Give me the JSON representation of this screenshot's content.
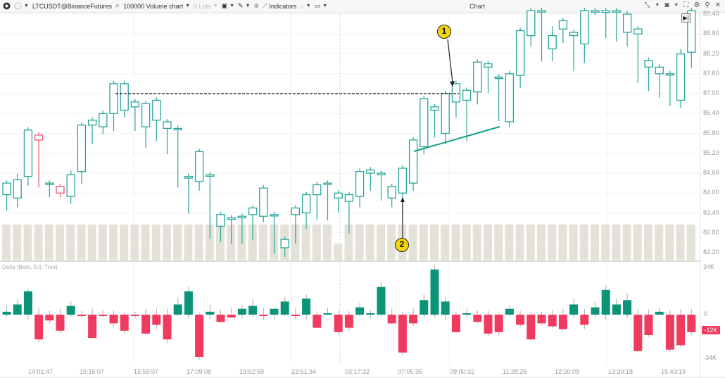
{
  "toolbar": {
    "symbol": "LTCUSDT@BinanceFutures",
    "chart_type": "100000 Volume chart",
    "lots": "0 Lots",
    "indicators": "Indicators",
    "title": "Chart"
  },
  "price_axis": {
    "labels": [
      "89.40",
      "88.80",
      "88.20",
      "87.60",
      "87.00",
      "86.40",
      "85.80",
      "85.20",
      "84.60",
      "84.00",
      "83.40",
      "82.80",
      "82.20"
    ]
  },
  "delta_pane": {
    "title": "Delta (Bars, 0.0, True)",
    "axis_labels": [
      "34K",
      "0",
      "-34K"
    ],
    "last_value": "-12K"
  },
  "time_axis": {
    "labels": [
      "14:01:47",
      "15:15:07",
      "15:59:07",
      "17:09:08",
      "19:52:59",
      "23:51:34",
      "03:17:32",
      "07:05:35",
      "09:00:32",
      "11:28:26",
      "12:20:09",
      "13:30:18",
      "15:43:19"
    ]
  },
  "annotations": {
    "marker_1": "1",
    "marker_2": "2"
  },
  "colors": {
    "up": "#26a69a",
    "down": "#ef5370",
    "delta_up": "#0b9478",
    "delta_down": "#f03a5f",
    "volume": "#e4e2d8",
    "marker": "#f5d60a"
  },
  "chart_data": {
    "type": "candlestick",
    "title": "LTCUSDT@BinanceFutures 100000 Volume chart",
    "ylim": [
      82.0,
      89.5
    ],
    "candles": [
      [
        83.95,
        84.3,
        83.6,
        83.85
      ],
      [
        83.85,
        84.4,
        83.7,
        84.5
      ],
      [
        84.5,
        85.9,
        84.35,
        85.8
      ],
      [
        85.75,
        85.6,
        84.3,
        84.3
      ],
      [
        84.3,
        84.3,
        84.0,
        84.2
      ],
      [
        84.2,
        84.0,
        84.0,
        84.0
      ],
      [
        83.9,
        84.55,
        83.8,
        84.6
      ],
      [
        84.65,
        86.05,
        84.4,
        86.0
      ],
      [
        86.05,
        86.2,
        85.6,
        86.0
      ],
      [
        86.0,
        86.4,
        85.9,
        86.4
      ],
      [
        86.4,
        87.3,
        86.0,
        86.45
      ],
      [
        86.5,
        87.3,
        86.4,
        86.6
      ],
      [
        86.6,
        86.75,
        86.0,
        86.0
      ],
      [
        86.0,
        86.7,
        85.5,
        86.25
      ],
      [
        86.2,
        86.8,
        85.7,
        86.0
      ],
      [
        85.95,
        86.15,
        85.3,
        85.95
      ],
      [
        85.95,
        85.95,
        84.3,
        84.5
      ],
      [
        84.45,
        84.5,
        83.5,
        84.3
      ],
      [
        84.35,
        85.25,
        84.2,
        84.55
      ],
      [
        84.55,
        84.55,
        82.75,
        82.75
      ],
      [
        83.0,
        83.35,
        82.65,
        82.9
      ],
      [
        83.25,
        83.25,
        82.6,
        82.6
      ],
      [
        83.25,
        83.3,
        82.6,
        82.6
      ],
      [
        83.35,
        83.55,
        82.7,
        83.35
      ],
      [
        83.3,
        84.15,
        83.25,
        83.45
      ],
      [
        83.35,
        83.35,
        82.3,
        82.3
      ],
      [
        82.35,
        82.6,
        82.2,
        82.5
      ],
      [
        83.35,
        83.55,
        82.6,
        82.6
      ],
      [
        83.4,
        83.95,
        83.05,
        83.5
      ],
      [
        83.95,
        84.25,
        83.3,
        84.2
      ],
      [
        84.3,
        84.3,
        83.3,
        83.45
      ],
      [
        83.85,
        84.0,
        83.55,
        83.7
      ],
      [
        83.75,
        83.95,
        82.9,
        83.8
      ],
      [
        83.9,
        84.65,
        83.7,
        84.6
      ],
      [
        84.6,
        84.7,
        84.2,
        84.6
      ],
      [
        84.55,
        84.6,
        83.9,
        83.95
      ],
      [
        83.85,
        84.2,
        83.7,
        84.0
      ],
      [
        84.0,
        84.75,
        83.5,
        84.3
      ],
      [
        84.3,
        85.6,
        84.2,
        85.4
      ],
      [
        85.4,
        86.85,
        85.3,
        86.5
      ],
      [
        86.5,
        86.6,
        85.8,
        85.7
      ],
      [
        85.8,
        87.0,
        85.6,
        86.75
      ],
      [
        86.75,
        87.3,
        86.4,
        86.8
      ],
      [
        86.8,
        87.1,
        85.7,
        87.05
      ],
      [
        87.05,
        87.95,
        86.8,
        87.8
      ],
      [
        87.8,
        87.9,
        87.15,
        87.5
      ],
      [
        87.5,
        87.5,
        86.3,
        86.0
      ],
      [
        86.15,
        87.6,
        86.1,
        87.55
      ],
      [
        87.55,
        88.9,
        87.3,
        88.75
      ],
      [
        88.75,
        89.5,
        88.55,
        89.5
      ],
      [
        89.5,
        89.5,
        88.1,
        88.3
      ],
      [
        88.35,
        88.75,
        88.1,
        88.95
      ],
      [
        88.95,
        89.2,
        88.65,
        88.75
      ],
      [
        88.75,
        88.85,
        87.8,
        88.5
      ],
      [
        88.5,
        89.5,
        88.05,
        89.5
      ],
      [
        89.5,
        89.5,
        89.5,
        89.5
      ],
      [
        89.45,
        89.5,
        88.8,
        89.5
      ],
      [
        89.5,
        89.5,
        88.7,
        88.85
      ],
      [
        88.85,
        89.4,
        88.55,
        88.8
      ],
      [
        88.8,
        88.95,
        87.45,
        87.8
      ],
      [
        87.8,
        88.0,
        87.2,
        87.5
      ],
      [
        87.6,
        87.8,
        87.0,
        87.6
      ],
      [
        87.6,
        87.6,
        86.75,
        86.85
      ],
      [
        86.8,
        88.2,
        86.7,
        88.25
      ],
      [
        88.25,
        89.5,
        87.9,
        89.5
      ]
    ],
    "delta": [
      2,
      7,
      16,
      -17,
      -4,
      -11,
      6,
      -1,
      -16,
      -1,
      -6,
      -11,
      -1,
      -13,
      -7,
      -17,
      7,
      16,
      -29,
      2,
      -5,
      -2,
      4,
      6,
      -1,
      4,
      9,
      -1,
      11,
      -9,
      1,
      -12,
      -9,
      5,
      0,
      19,
      -6,
      -26,
      -6,
      10,
      31,
      9,
      -12,
      0,
      -5,
      -13,
      -12,
      4,
      -7,
      -17,
      -6,
      -8,
      -10,
      7,
      -7,
      5,
      17,
      7,
      10,
      -25,
      -14,
      2,
      -24,
      -21,
      -12
    ],
    "reference_line": 87.0,
    "trendline": [
      [
        588,
        215
      ],
      [
        710,
        180
      ]
    ]
  }
}
